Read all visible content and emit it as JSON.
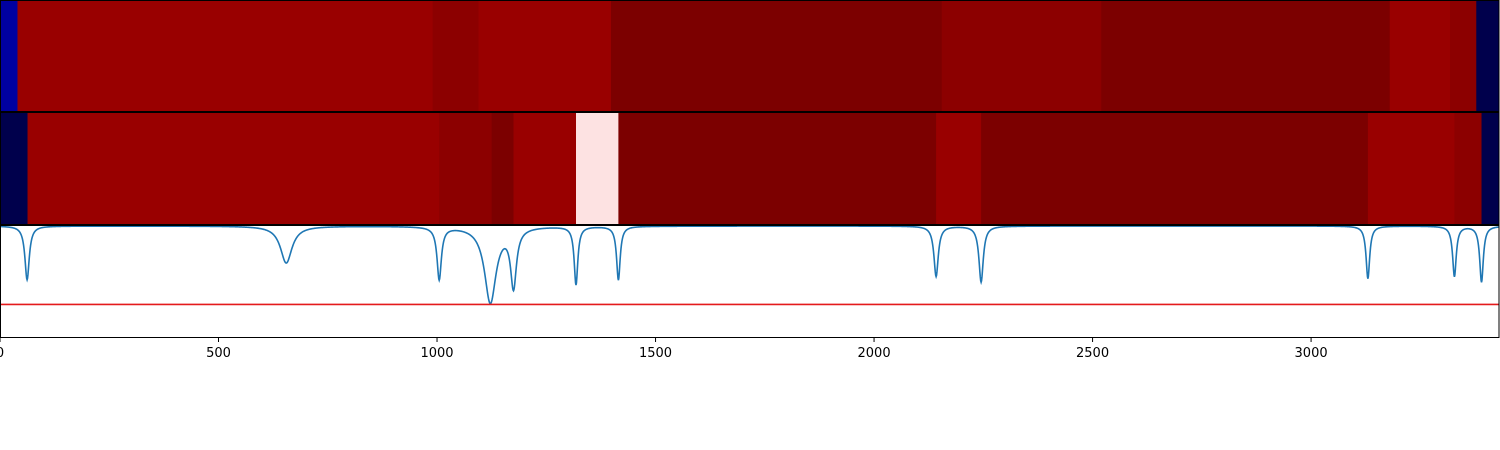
{
  "colors": {
    "band_colors": [
      "#0000a0",
      "#00004c",
      "#990000",
      "#8c0000",
      "#7c0000",
      "#fde2e2"
    ],
    "spectrum_line": "#1f77b4",
    "threshold_line": "#e41a1c",
    "axes": "#000000",
    "background": "#ffffff"
  },
  "chart_data": {
    "type": "heatmap",
    "title": "",
    "xlabel": "",
    "ylabel": "",
    "xlim": [
      0,
      3430
    ],
    "x_ticks": [
      0,
      500,
      1000,
      1500,
      2000,
      2500,
      3000
    ],
    "x_tick_labels": [
      "0",
      "500",
      "1000",
      "1500",
      "2000",
      "2500",
      "3000"
    ],
    "heatmap_rows": [
      {
        "name": "row-1",
        "segments": [
          {
            "start": 0,
            "end": 40,
            "color_index": 0
          },
          {
            "start": 40,
            "end": 990,
            "color_index": 2
          },
          {
            "start": 990,
            "end": 1095,
            "color_index": 3
          },
          {
            "start": 1095,
            "end": 1398,
            "color_index": 2
          },
          {
            "start": 1398,
            "end": 2155,
            "color_index": 4
          },
          {
            "start": 2155,
            "end": 2520,
            "color_index": 3
          },
          {
            "start": 2520,
            "end": 3180,
            "color_index": 4
          },
          {
            "start": 3180,
            "end": 3318,
            "color_index": 2
          },
          {
            "start": 3318,
            "end": 3378,
            "color_index": 3
          },
          {
            "start": 3378,
            "end": 3430,
            "color_index": 1
          }
        ]
      },
      {
        "name": "row-2",
        "segments": [
          {
            "start": 0,
            "end": 63,
            "color_index": 1
          },
          {
            "start": 63,
            "end": 1005,
            "color_index": 2
          },
          {
            "start": 1005,
            "end": 1125,
            "color_index": 3
          },
          {
            "start": 1125,
            "end": 1175,
            "color_index": 4
          },
          {
            "start": 1175,
            "end": 1318,
            "color_index": 2
          },
          {
            "start": 1318,
            "end": 1415,
            "color_index": 5
          },
          {
            "start": 1415,
            "end": 2142,
            "color_index": 4
          },
          {
            "start": 2142,
            "end": 2245,
            "color_index": 2
          },
          {
            "start": 2245,
            "end": 3130,
            "color_index": 4
          },
          {
            "start": 3130,
            "end": 3328,
            "color_index": 2
          },
          {
            "start": 3328,
            "end": 3390,
            "color_index": 3
          },
          {
            "start": 3390,
            "end": 3430,
            "color_index": 1
          }
        ]
      }
    ],
    "spectrum": {
      "ylim": [
        -0.7,
        0.3
      ],
      "baseline": 0.3,
      "threshold": -0.4,
      "peaks": [
        {
          "x": 62,
          "depth": 0.48,
          "width": 6
        },
        {
          "x": 655,
          "depth": 0.33,
          "width": 16
        },
        {
          "x": 1005,
          "depth": 0.47,
          "width": 6
        },
        {
          "x": 1122,
          "depth": 0.68,
          "width": 16
        },
        {
          "x": 1175,
          "depth": 0.52,
          "width": 8
        },
        {
          "x": 1318,
          "depth": 0.52,
          "width": 5
        },
        {
          "x": 1415,
          "depth": 0.48,
          "width": 5
        },
        {
          "x": 2142,
          "depth": 0.45,
          "width": 6
        },
        {
          "x": 2245,
          "depth": 0.5,
          "width": 6
        },
        {
          "x": 3130,
          "depth": 0.47,
          "width": 5
        },
        {
          "x": 3328,
          "depth": 0.45,
          "width": 5
        },
        {
          "x": 3390,
          "depth": 0.5,
          "width": 5
        }
      ]
    }
  }
}
